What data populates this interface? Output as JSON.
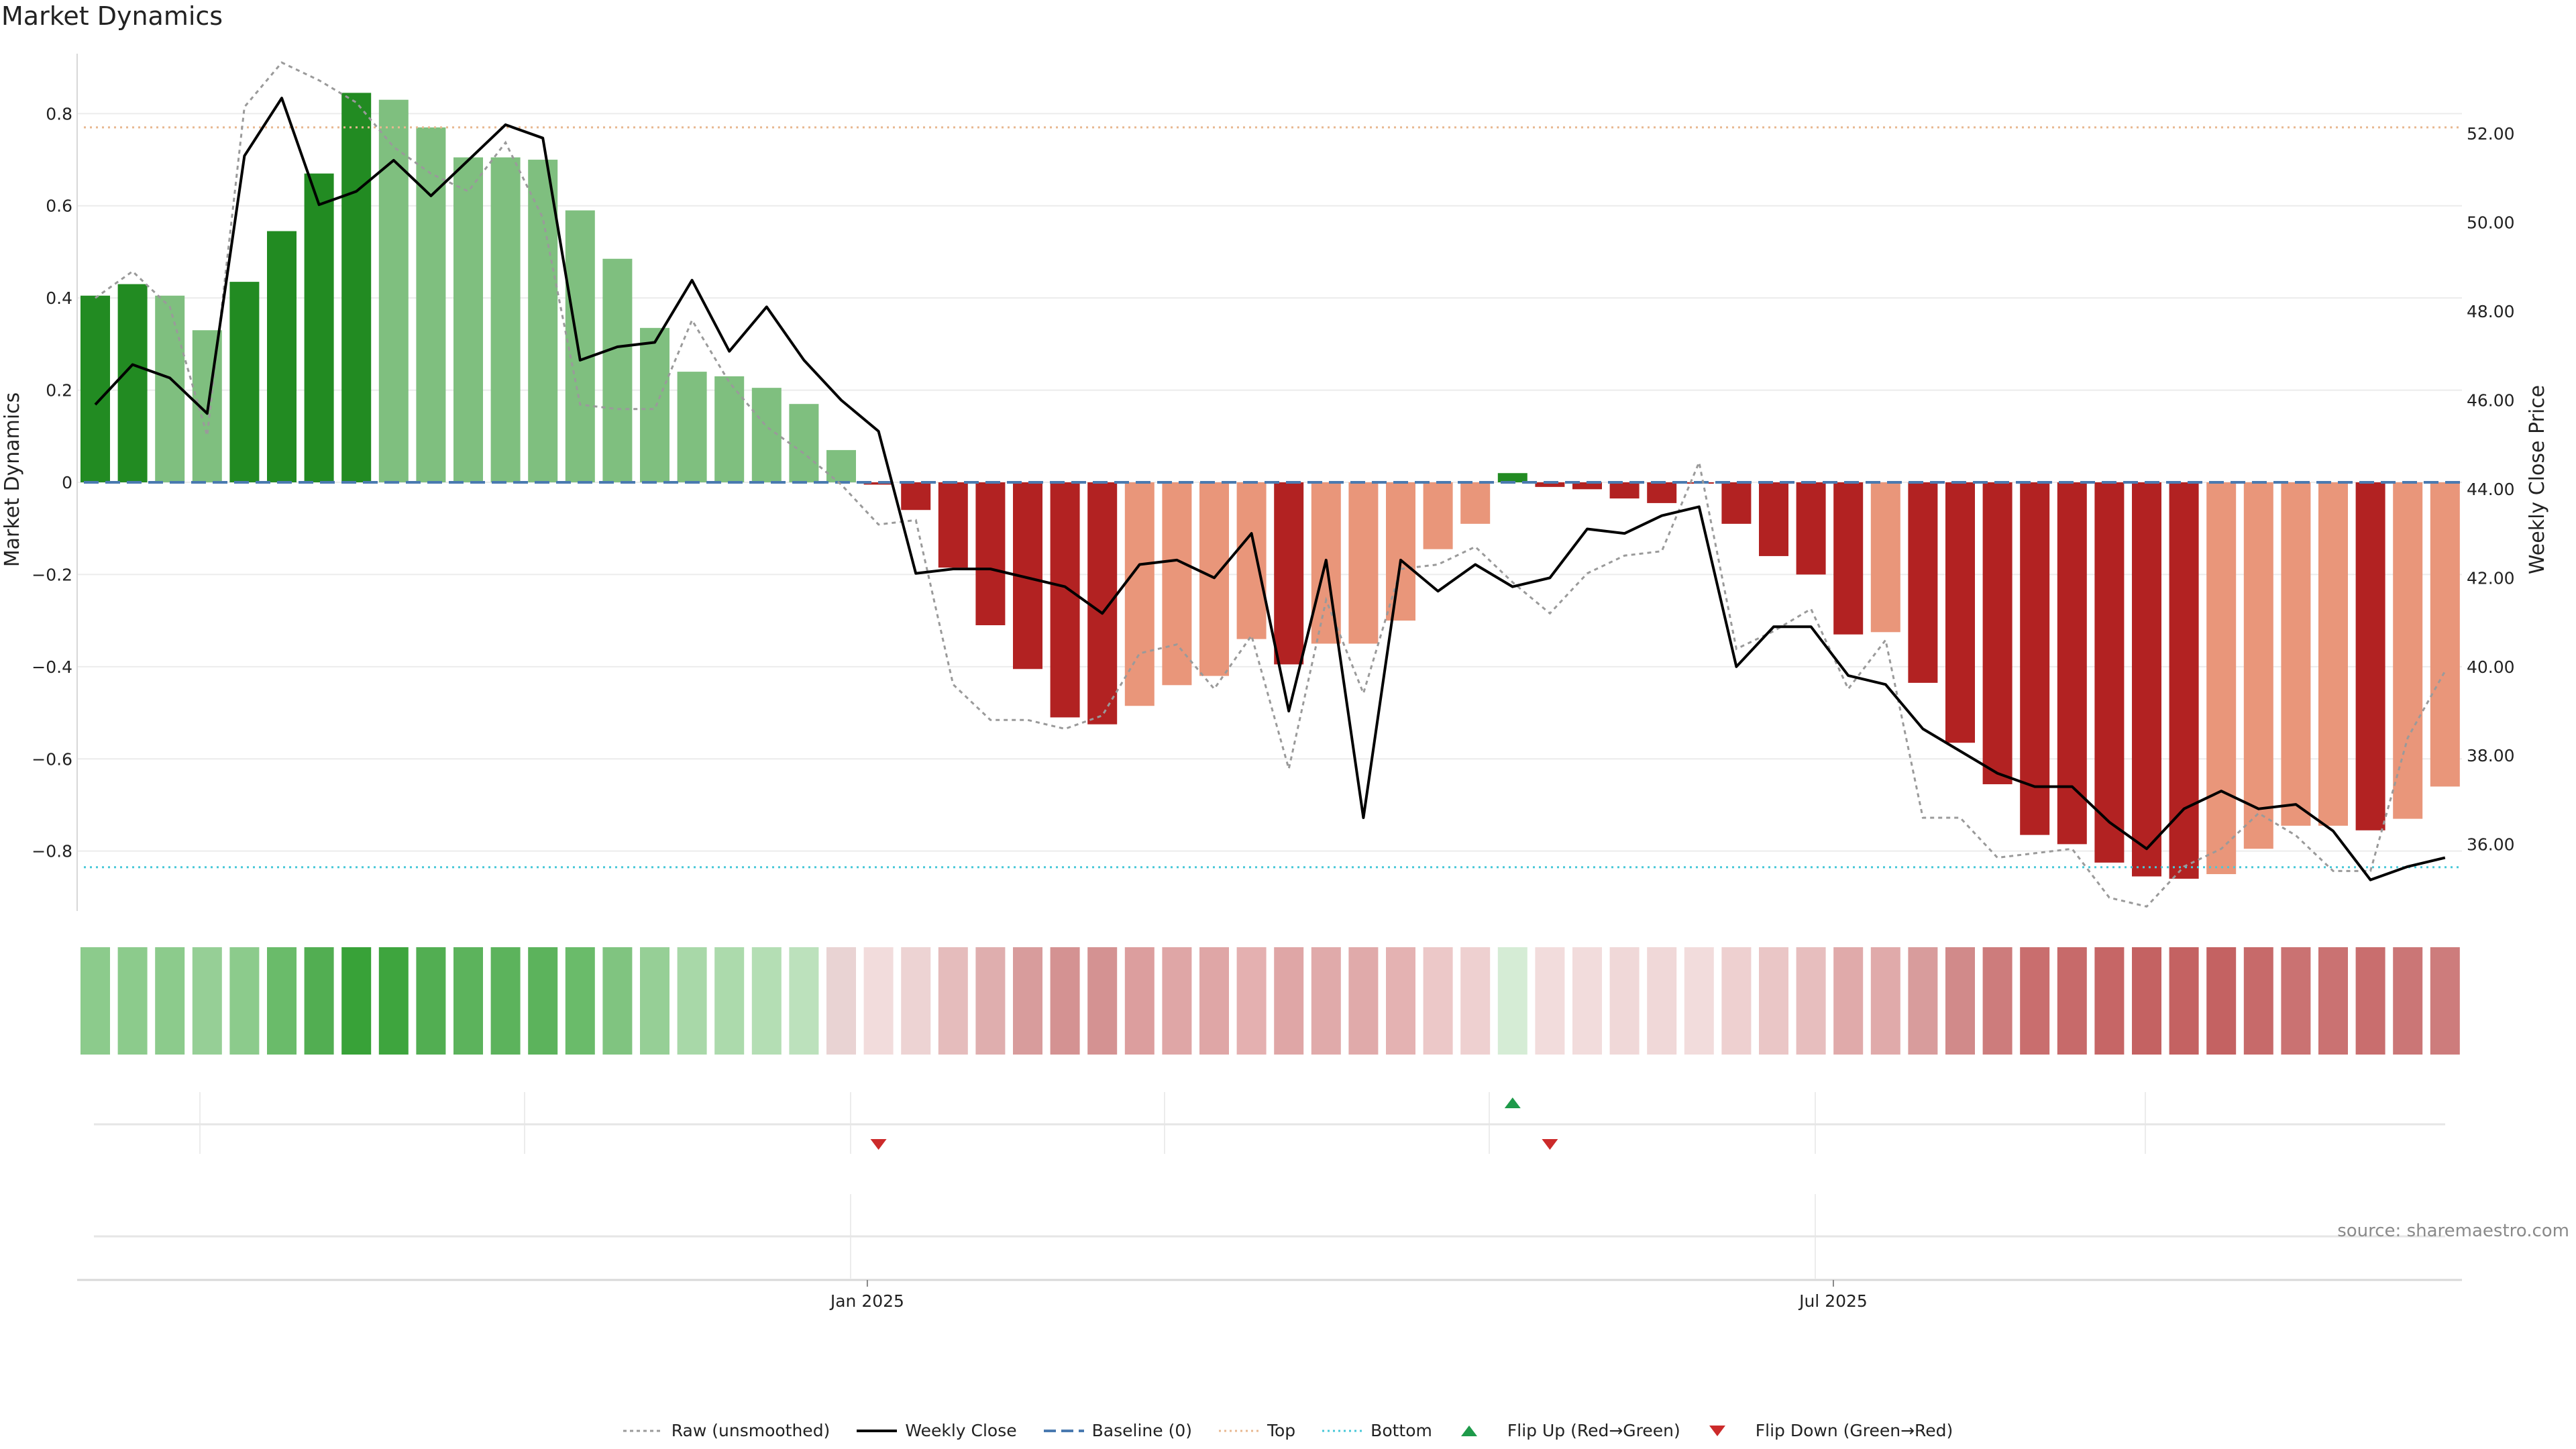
{
  "title": "Market Dynamics",
  "source": "source: sharemaestro.com",
  "chart_data": {
    "type": "bar",
    "title": "Market Dynamics",
    "ylabel": "Market Dynamics",
    "y2label": "Weekly Close Price",
    "ylim": [
      -0.93,
      0.93
    ],
    "y2lim": [
      34.5,
      53.8
    ],
    "yticks": [
      0.8,
      0.6,
      0.4,
      0.2,
      0,
      -0.2,
      -0.4,
      -0.6,
      -0.8
    ],
    "ytick_labels": [
      "0.8",
      "0.6",
      "0.4",
      "0.2",
      "0",
      "−0.2",
      "−0.4",
      "−0.6",
      "−0.8"
    ],
    "y2ticks": [
      52,
      50,
      48,
      46,
      44,
      42,
      40,
      38,
      36
    ],
    "y2tick_labels": [
      "52.00",
      "50.00",
      "48.00",
      "46.00",
      "44.00",
      "42.00",
      "40.00",
      "38.00",
      "36.00"
    ],
    "top_line": 0.77,
    "bottom_line": -0.835,
    "baseline": 0,
    "x_tick_labels": [
      {
        "label": "Jan 2025",
        "index": 20.7
      },
      {
        "label": "Jul 2025",
        "index": 46.6
      }
    ],
    "values": [
      0.405,
      0.43,
      0.405,
      0.33,
      0.435,
      0.545,
      0.67,
      0.845,
      0.83,
      0.77,
      0.705,
      0.705,
      0.7,
      0.59,
      0.485,
      0.335,
      0.24,
      0.23,
      0.205,
      0.17,
      0.07,
      -0.005,
      -0.06,
      -0.185,
      -0.31,
      -0.405,
      -0.51,
      -0.525,
      -0.485,
      -0.44,
      -0.42,
      -0.34,
      -0.395,
      -0.35,
      -0.35,
      -0.3,
      -0.145,
      -0.09,
      0.02,
      -0.01,
      -0.015,
      -0.035,
      -0.045,
      0,
      -0.09,
      -0.16,
      -0.2,
      -0.33,
      -0.325,
      -0.435,
      -0.565,
      -0.655,
      -0.765,
      -0.785,
      -0.825,
      -0.855,
      -0.86,
      -0.85,
      -0.795,
      -0.745,
      -0.745,
      -0.755,
      -0.73,
      -0.66
    ],
    "bar_colors": [
      "#228b22",
      "#228b22",
      "#7fbf7f",
      "#7fbf7f",
      "#228b22",
      "#228b22",
      "#228b22",
      "#228b22",
      "#7fbf7f",
      "#7fbf7f",
      "#7fbf7f",
      "#7fbf7f",
      "#7fbf7f",
      "#7fbf7f",
      "#7fbf7f",
      "#7fbf7f",
      "#7fbf7f",
      "#7fbf7f",
      "#7fbf7f",
      "#7fbf7f",
      "#7fbf7f",
      "#b22222",
      "#b22222",
      "#b22222",
      "#b22222",
      "#b22222",
      "#b22222",
      "#b22222",
      "#e9967a",
      "#e9967a",
      "#e9967a",
      "#e9967a",
      "#b22222",
      "#e9967a",
      "#e9967a",
      "#e9967a",
      "#e9967a",
      "#e9967a",
      "#228b22",
      "#b22222",
      "#b22222",
      "#b22222",
      "#b22222",
      "#b22222",
      "#b22222",
      "#b22222",
      "#b22222",
      "#b22222",
      "#e9967a",
      "#b22222",
      "#b22222",
      "#b22222",
      "#b22222",
      "#b22222",
      "#b22222",
      "#b22222",
      "#b22222",
      "#e9967a",
      "#e9967a",
      "#e9967a",
      "#e9967a",
      "#b22222",
      "#e9967a",
      "#e9967a"
    ],
    "heat_strip_colors": [
      "#8ccb8c",
      "#8ccb8c",
      "#8ccb8c",
      "#96cf96",
      "#8ccb8c",
      "#6abb6a",
      "#52ae52",
      "#38a238",
      "#3ea53e",
      "#52ae52",
      "#5cb35c",
      "#5cb35c",
      "#5cb35c",
      "#6abb6a",
      "#80c480",
      "#96cf96",
      "#a8d8a8",
      "#acdaac",
      "#b4deb4",
      "#bce1bc",
      "#e9d3d3",
      "#f2dcdc",
      "#edd3d3",
      "#e5bcbc",
      "#dfaeae",
      "#d89c9c",
      "#d49292",
      "#d49292",
      "#dc9e9e",
      "#dfa6a6",
      "#dfa6a6",
      "#e4b0b0",
      "#dfa6a6",
      "#e0aaaa",
      "#e0aaaa",
      "#e4b2b2",
      "#ecc8c8",
      "#eed0d0",
      "#d5ecd5",
      "#f2dcdc",
      "#f2dcdc",
      "#f0d8d8",
      "#f0d8d8",
      "#f2dcdc",
      "#eed0d0",
      "#eac6c6",
      "#e7bebe",
      "#e0aaaa",
      "#e0aaaa",
      "#d89c9c",
      "#d18a8a",
      "#cd7c7c",
      "#c96e6e",
      "#c76a6a",
      "#c66666",
      "#c46262",
      "#c46262",
      "#c46262",
      "#c76a6a",
      "#ca7272",
      "#ca7272",
      "#c96e6e",
      "#cb7676",
      "#cd7c7c"
    ],
    "flip_markers": [
      {
        "type": "down",
        "index": 21
      },
      {
        "type": "up",
        "index": 38
      },
      {
        "type": "down",
        "index": 39
      }
    ],
    "weekly_close": [
      45.9,
      46.8,
      46.5,
      45.7,
      51.5,
      52.8,
      50.4,
      50.7,
      51.4,
      50.6,
      51.4,
      52.2,
      51.9,
      46.9,
      47.2,
      47.3,
      48.7,
      47.1,
      48.1,
      46.9,
      46.0,
      45.3,
      42.1,
      42.2,
      42.2,
      42.0,
      41.8,
      41.2,
      42.3,
      42.4,
      42.0,
      43.0,
      39.0,
      42.4,
      36.6,
      42.4,
      41.7,
      42.3,
      41.8,
      42.0,
      43.1,
      43.0,
      43.4,
      43.6,
      40.0,
      40.9,
      40.9,
      39.8,
      39.6,
      38.6,
      38.1,
      37.6,
      37.3,
      37.3,
      36.5,
      35.9,
      36.8,
      37.2,
      36.8,
      36.9,
      36.3,
      35.2,
      35.5,
      35.7
    ],
    "raw_unsmoothed": [
      48.3,
      48.9,
      48.1,
      45.2,
      52.6,
      53.6,
      53.2,
      52.7,
      51.7,
      51.1,
      50.7,
      51.8,
      50.1,
      45.9,
      45.8,
      45.8,
      47.8,
      46.4,
      45.4,
      44.8,
      44.1,
      43.2,
      43.3,
      39.6,
      38.8,
      38.8,
      38.6,
      38.9,
      40.3,
      40.5,
      39.5,
      40.7,
      37.7,
      41.5,
      39.4,
      42.2,
      42.3,
      42.7,
      41.9,
      41.2,
      42.1,
      42.5,
      42.6,
      44.6,
      40.4,
      40.8,
      41.3,
      39.5,
      40.6,
      36.6,
      36.6,
      35.7,
      35.8,
      35.9,
      34.8,
      34.6,
      35.5,
      35.9,
      36.7,
      36.2,
      35.4,
      35.4,
      38.4,
      39.9
    ],
    "series": [
      {
        "name": "Raw (unsmoothed)",
        "color": "#9a9a9a"
      },
      {
        "name": "Weekly Close",
        "color": "#000000"
      },
      {
        "name": "Baseline (0)",
        "color": "#4a7ab0"
      },
      {
        "name": "Top",
        "color": "#e8b890"
      },
      {
        "name": "Bottom",
        "color": "#48c8d8"
      },
      {
        "name": "Flip Up (Red→Green)",
        "color": "#1e9a4a"
      },
      {
        "name": "Flip Down (Green→Red)",
        "color": "#cc2a2a"
      }
    ]
  }
}
